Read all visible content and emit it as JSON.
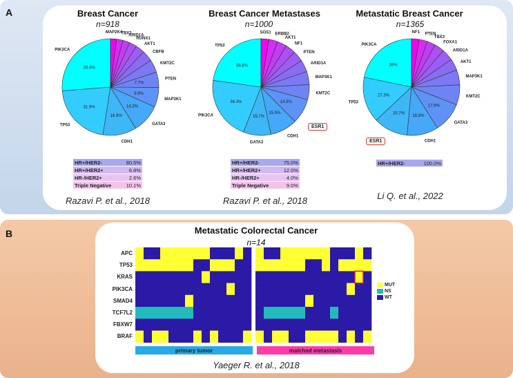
{
  "panel_a": {
    "label": "A",
    "charts": [
      {
        "title": "Breast Cancer",
        "n": "n=918",
        "citation": "Razavi P. et al., 2018",
        "slices": [
          {
            "label": "PIK3CA",
            "value": 39.4,
            "pct": "39.4%",
            "color": "#00ffff"
          },
          {
            "label": "TP53",
            "value": 31.9,
            "pct": "31.9%",
            "color": "#33ccff"
          },
          {
            "label": "CDH1",
            "value": 16.9,
            "pct": "16.9%",
            "color": "#3db7f5"
          },
          {
            "label": "GATA3",
            "value": 14.3,
            "pct": "14.3%",
            "color": "#45a8f8"
          },
          {
            "label": "MAP3K1",
            "value": 9.9,
            "pct": "9.9%",
            "color": "#5d93f5"
          },
          {
            "label": "PTEN",
            "value": 7.7,
            "pct": "7.7%",
            "color": "#6f84f3"
          },
          {
            "label": "KMT2C",
            "value": 6.5,
            "pct": "",
            "color": "#7b7af2"
          },
          {
            "label": "CBFB",
            "value": 5.5,
            "pct": "",
            "color": "#8a6cf3"
          },
          {
            "label": "AKT1",
            "value": 4.5,
            "pct": "",
            "color": "#9b5ef4"
          },
          {
            "label": "RUNX1",
            "value": 3.8,
            "pct": "",
            "color": "#ad4ff3"
          },
          {
            "label": "ARID1A",
            "value": 3.5,
            "pct": "",
            "color": "#c13df3"
          },
          {
            "label": "TBX3",
            "value": 3.2,
            "pct": "",
            "color": "#d42ef2"
          },
          {
            "label": "MAP2K4",
            "value": 3.0,
            "pct": "",
            "color": "#ef05ef"
          }
        ],
        "subtypes": [
          {
            "label": "HR+/HER2-",
            "pct": "80.5%",
            "color": "#a8a8f0"
          },
          {
            "label": "HR+/HER2+",
            "pct": "6.8%",
            "color": "#d2b8f4"
          },
          {
            "label": "HR-/HER2+",
            "pct": "2.6%",
            "color": "#e8c4f3"
          },
          {
            "label": "Triple Negative",
            "pct": "10.1%",
            "color": "#f4c2ec"
          }
        ]
      },
      {
        "title": "Breast Cancer Metastases",
        "n": "n=1000",
        "citation": "Razavi P. et al., 2018",
        "boxed_gene": "ESR1",
        "slices": [
          {
            "label": "TP53",
            "value": 38.8,
            "pct": "38.8%",
            "color": "#00ffff"
          },
          {
            "label": "PIK3CA",
            "value": 36.3,
            "pct": "36.3%",
            "color": "#33ccff"
          },
          {
            "label": "GATA3",
            "value": 15.7,
            "pct": "15.7%",
            "color": "#3db7f5"
          },
          {
            "label": "CDH1",
            "value": 15.5,
            "pct": "15.5%",
            "color": "#45a8f8"
          },
          {
            "label": "ESR1",
            "value": 14.3,
            "pct": "14.3%",
            "color": "#5d93f5"
          },
          {
            "label": "KMT2C",
            "value": 8.5,
            "pct": "",
            "color": "#6f84f3"
          },
          {
            "label": "MAP3K1",
            "value": 7.5,
            "pct": "",
            "color": "#7b7af2"
          },
          {
            "label": "ARID1A",
            "value": 6.8,
            "pct": "",
            "color": "#8a6cf3"
          },
          {
            "label": "PTEN",
            "value": 6.2,
            "pct": "",
            "color": "#9b5ef4"
          },
          {
            "label": "NF1",
            "value": 5.8,
            "pct": "",
            "color": "#ad4ff3"
          },
          {
            "label": "AKT1",
            "value": 5.4,
            "pct": "",
            "color": "#c13df3"
          },
          {
            "label": "ERBB2",
            "value": 5.0,
            "pct": "",
            "color": "#d42ef2"
          },
          {
            "label": "SOS1",
            "value": 4.5,
            "pct": "",
            "color": "#ef05ef"
          }
        ],
        "subtypes": [
          {
            "label": "HR+/HER2-",
            "pct": "75.0%",
            "color": "#a8a8f0"
          },
          {
            "label": "HR+/HER2+",
            "pct": "12.0%",
            "color": "#d2b8f4"
          },
          {
            "label": "HR-/HER2+",
            "pct": "4.0%",
            "color": "#e8c4f3"
          },
          {
            "label": "Triple Negative",
            "pct": "9.0%",
            "color": "#f4c2ec"
          }
        ]
      },
      {
        "title": "Metastatic Breast Cancer",
        "n": "n=1365",
        "citation": "Li Q. et al., 2022",
        "boxed_gene": "ESR1",
        "slices": [
          {
            "label": "PIK3CA",
            "value": 39.0,
            "pct": "39%",
            "color": "#00ffff"
          },
          {
            "label": "TP53",
            "value": 27.3,
            "pct": "27.3%",
            "color": "#33ccff"
          },
          {
            "label": "ESR1",
            "value": 20.7,
            "pct": "20.7%",
            "color": "#3db7f5"
          },
          {
            "label": "CDH1",
            "value": 18.8,
            "pct": "18.8%",
            "color": "#45a8f8"
          },
          {
            "label": "GATA3",
            "value": 17.9,
            "pct": "17.9%",
            "color": "#5d93f5"
          },
          {
            "label": "KMT2C",
            "value": 12.0,
            "pct": "",
            "color": "#6f84f3"
          },
          {
            "label": "MAP3K1",
            "value": 9.0,
            "pct": "",
            "color": "#7b7af2"
          },
          {
            "label": "AKT1",
            "value": 7.0,
            "pct": "",
            "color": "#8a6cf3"
          },
          {
            "label": "ARID1A",
            "value": 7.0,
            "pct": "",
            "color": "#9b5ef4"
          },
          {
            "label": "FOXA1",
            "value": 6.0,
            "pct": "",
            "color": "#ad4ff3"
          },
          {
            "label": "TBX3",
            "value": 5.0,
            "pct": "",
            "color": "#c13df3"
          },
          {
            "label": "PTEN",
            "value": 5.0,
            "pct": "",
            "color": "#d42ef2"
          },
          {
            "label": "NF1",
            "value": 4.5,
            "pct": "",
            "color": "#ef05ef"
          }
        ],
        "subtypes": [
          {
            "label": "HR+/HER2-",
            "pct": "100.0%",
            "color": "#a8a8f0"
          }
        ]
      }
    ]
  },
  "panel_b": {
    "label": "B",
    "title": "Metastatic Colorectal Cancer",
    "n": "n=14",
    "citation": "Yaeger R. et al., 2018",
    "groups": [
      {
        "label": "primary tumor",
        "color": "#29a9e8"
      },
      {
        "label": "matched metastasis",
        "color": "#ff3ca8"
      }
    ],
    "legend": [
      {
        "label": "MUT",
        "color": "#ffff33"
      },
      {
        "label": "NS",
        "color": "#22bbbb"
      },
      {
        "label": "WT",
        "color": "#2b1aa6"
      }
    ]
  },
  "chart_data": [
    {
      "type": "pie",
      "title": "Breast Cancer",
      "n": 918,
      "categories": [
        "PIK3CA",
        "TP53",
        "CDH1",
        "GATA3",
        "MAP3K1",
        "PTEN",
        "KMT2C",
        "CBFB",
        "AKT1",
        "RUNX1",
        "ARID1A",
        "TBX3",
        "MAP2K4"
      ],
      "values": [
        39.4,
        31.9,
        16.9,
        14.3,
        9.9,
        7.7,
        6.5,
        5.5,
        4.5,
        3.8,
        3.5,
        3.2,
        3.0
      ]
    },
    {
      "type": "pie",
      "title": "Breast Cancer Metastases",
      "n": 1000,
      "categories": [
        "TP53",
        "PIK3CA",
        "GATA3",
        "CDH1",
        "ESR1",
        "KMT2C",
        "MAP3K1",
        "ARID1A",
        "PTEN",
        "NF1",
        "AKT1",
        "ERBB2",
        "SOS1"
      ],
      "values": [
        38.8,
        36.3,
        15.7,
        15.5,
        14.3,
        8.5,
        7.5,
        6.8,
        6.2,
        5.8,
        5.4,
        5.0,
        4.5
      ]
    },
    {
      "type": "pie",
      "title": "Metastatic Breast Cancer",
      "n": 1365,
      "categories": [
        "PIK3CA",
        "TP53",
        "ESR1",
        "CDH1",
        "GATA3",
        "KMT2C",
        "MAP3K1",
        "AKT1",
        "ARID1A",
        "FOXA1",
        "TBX3",
        "PTEN",
        "NF1"
      ],
      "values": [
        39.0,
        27.3,
        20.7,
        18.8,
        17.9,
        12.0,
        9.0,
        7.0,
        7.0,
        6.0,
        5.0,
        5.0,
        4.5
      ]
    },
    {
      "type": "heatmap",
      "title": "Metastatic Colorectal Cancer",
      "n": 14,
      "genes": [
        "APC",
        "TP53",
        "KRAS",
        "PIK3CA",
        "SMAD4",
        "TCF7L2",
        "FBXW7",
        "BRAF"
      ],
      "legend": [
        "MUT",
        "NS",
        "WT"
      ],
      "primary_tumor": [
        "MWWMMMMMMWWWMW",
        "MMMMMMMWWMMMWW",
        "WWWWWWWWMWWWWW",
        "WWWWWWWWWWWMWW",
        "WWWWWWMWWWWWWW",
        "NNNNNNNWWWWWWW",
        "WWWWWWWWWWWWWW",
        "MWMMWWWMWMWWWM"
      ],
      "matched_metastasis": [
        "MWWMMMMMMWWWMW",
        "MMMMMMWWMWMMMM",
        "WWWWWWWWWWWWMW",
        "WWWWWWWWWWWMWW",
        "WWWWWWMWWWWWWW",
        "WNNNNNWWWNWWWW",
        "WWWWWWWWWWWWWW",
        "MWMMWWMMMMWMWM"
      ]
    }
  ]
}
